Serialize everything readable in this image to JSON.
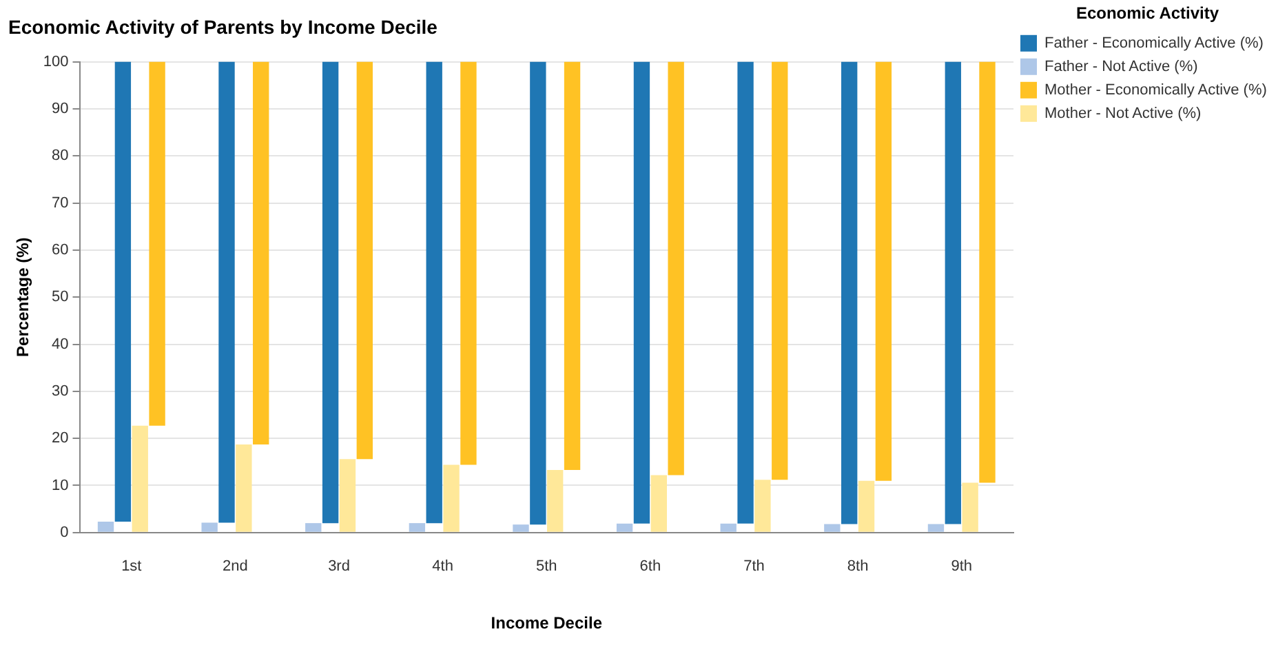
{
  "chart_data": {
    "type": "bar",
    "title": "Economic Activity of Parents by Income Decile",
    "xlabel": "Income Decile",
    "ylabel": "Percentage (%)",
    "legend_title": "Economic Activity",
    "categories": [
      "1st",
      "2nd",
      "3rd",
      "4th",
      "5th",
      "6th",
      "7th",
      "8th",
      "9th"
    ],
    "series": [
      {
        "name": "Father - Not Active (%)",
        "color": "#aec7e8",
        "values": [
          2.3,
          2.1,
          2.0,
          2.0,
          1.7,
          1.9,
          1.9,
          1.8,
          1.8
        ]
      },
      {
        "name": "Father - Economically Active (%)",
        "color": "#1f77b4",
        "base": [
          2.3,
          2.1,
          2.0,
          2.0,
          1.7,
          1.9,
          1.9,
          1.8,
          1.8
        ],
        "values": [
          97.7,
          97.9,
          98.0,
          98.0,
          98.3,
          98.1,
          98.1,
          98.2,
          98.2
        ]
      },
      {
        "name": "Mother - Not Active (%)",
        "color": "#ffe899",
        "values": [
          22.7,
          18.7,
          15.6,
          14.4,
          13.3,
          12.2,
          11.2,
          11.0,
          10.6
        ]
      },
      {
        "name": "Mother - Economically Active (%)",
        "color": "#ffc224",
        "base": [
          22.7,
          18.7,
          15.6,
          14.4,
          13.3,
          12.2,
          11.2,
          11.0,
          10.6
        ],
        "values": [
          77.3,
          81.3,
          84.4,
          85.6,
          86.7,
          87.8,
          88.8,
          89.0,
          89.4
        ]
      }
    ],
    "ylim": [
      0,
      100
    ],
    "yticks": [
      0,
      10,
      20,
      30,
      40,
      50,
      60,
      70,
      80,
      90,
      100
    ],
    "grid": "y",
    "legend": "top right"
  }
}
